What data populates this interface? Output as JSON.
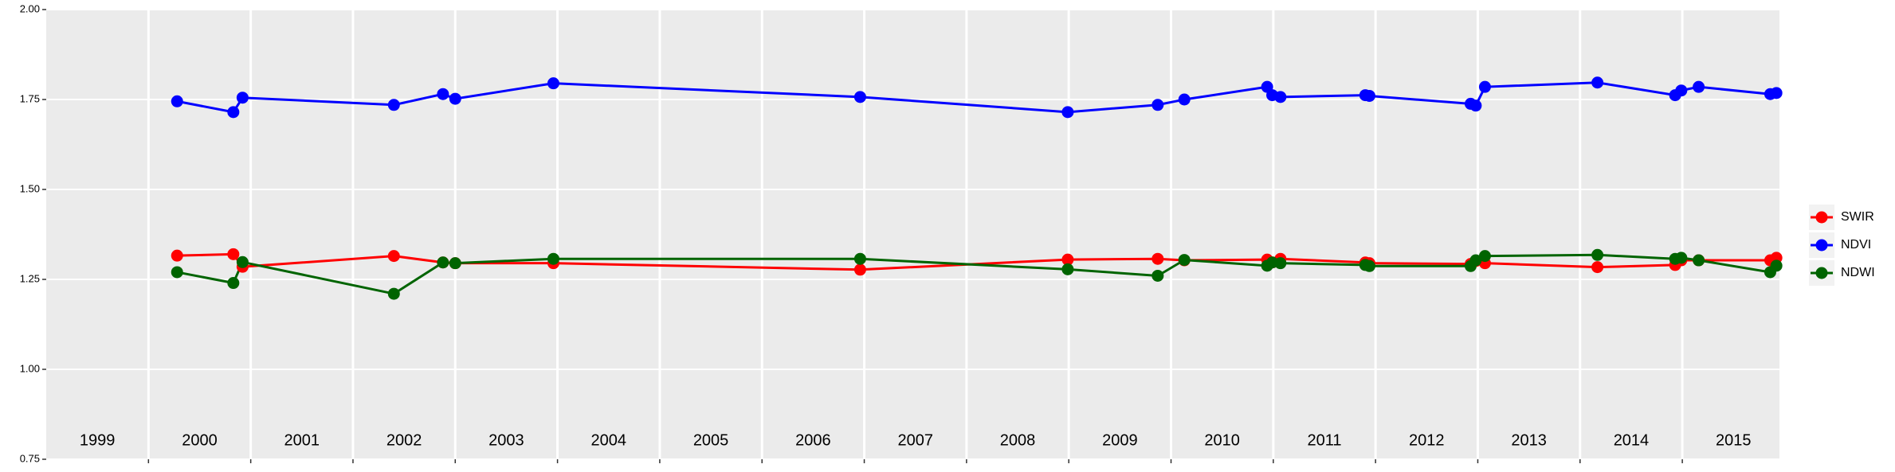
{
  "chart_data": {
    "type": "line",
    "x": [
      2000.28,
      2000.83,
      2000.92,
      2002.4,
      2002.88,
      2003.0,
      2003.96,
      2006.96,
      2008.99,
      2009.87,
      2010.13,
      2010.94,
      2010.99,
      2011.07,
      2011.9,
      2011.94,
      2012.93,
      2012.98,
      2013.07,
      2014.17,
      2014.93,
      2014.99,
      2015.16,
      2015.86,
      2015.92
    ],
    "series": [
      {
        "name": "SWIR",
        "color": "#ff0000",
        "values": [
          1.316,
          1.32,
          1.285,
          1.315,
          1.297,
          1.295,
          1.295,
          1.277,
          1.305,
          1.307,
          1.303,
          1.305,
          1.297,
          1.307,
          1.297,
          1.295,
          1.293,
          1.301,
          1.295,
          1.284,
          1.29,
          1.303,
          1.303,
          1.303,
          1.31
        ]
      },
      {
        "name": "NDVI",
        "color": "#0000ff",
        "values": [
          1.745,
          1.715,
          1.755,
          1.735,
          1.765,
          1.752,
          1.795,
          1.757,
          1.715,
          1.735,
          1.75,
          1.785,
          1.762,
          1.757,
          1.762,
          1.76,
          1.738,
          1.733,
          1.785,
          1.797,
          1.762,
          1.775,
          1.785,
          1.765,
          1.768
        ]
      },
      {
        "name": "NDWI",
        "color": "#006400",
        "values": [
          1.27,
          1.24,
          1.298,
          1.21,
          1.297,
          1.295,
          1.307,
          1.307,
          1.278,
          1.26,
          1.304,
          1.288,
          1.297,
          1.295,
          1.29,
          1.287,
          1.287,
          1.303,
          1.315,
          1.318,
          1.307,
          1.31,
          1.303,
          1.27,
          1.288
        ]
      }
    ],
    "xlim": [
      1999.0,
      2015.95
    ],
    "xticks": [
      2000,
      2001,
      2002,
      2003,
      2004,
      2005,
      2006,
      2007,
      2008,
      2009,
      2010,
      2011,
      2012,
      2013,
      2014,
      2015
    ],
    "ylim": [
      0.75,
      2.0
    ],
    "yticks": [
      0.75,
      {
        "value": 1,
        "label": "1.00"
      },
      1.25,
      {
        "value": 1.5,
        "label": "1.50"
      },
      1.75,
      {
        "value": 2,
        "label": "2.00"
      }
    ],
    "annotations": [
      {
        "x": 1999.5,
        "y": 0.8,
        "text": "1999"
      },
      {
        "x": 2000.5,
        "y": 0.8,
        "text": "2000"
      },
      {
        "x": 2001.5,
        "y": 0.8,
        "text": "2001"
      },
      {
        "x": 2002.5,
        "y": 0.8,
        "text": "2002"
      },
      {
        "x": 2003.5,
        "y": 0.8,
        "text": "2003"
      },
      {
        "x": 2004.5,
        "y": 0.8,
        "text": "2004"
      },
      {
        "x": 2005.5,
        "y": 0.8,
        "text": "2005"
      },
      {
        "x": 2006.5,
        "y": 0.8,
        "text": "2006"
      },
      {
        "x": 2007.5,
        "y": 0.8,
        "text": "2007"
      },
      {
        "x": 2008.5,
        "y": 0.8,
        "text": "2008"
      },
      {
        "x": 2009.5,
        "y": 0.8,
        "text": "2009"
      },
      {
        "x": 2010.5,
        "y": 0.8,
        "text": "2010"
      },
      {
        "x": 2011.5,
        "y": 0.8,
        "text": "2011"
      },
      {
        "x": 2012.5,
        "y": 0.8,
        "text": "2012"
      },
      {
        "x": 2013.5,
        "y": 0.8,
        "text": "2013"
      },
      {
        "x": 2014.5,
        "y": 0.8,
        "text": "2014"
      },
      {
        "x": 2015.5,
        "y": 0.8,
        "text": "2015"
      }
    ],
    "grid": true,
    "legend": "right"
  }
}
